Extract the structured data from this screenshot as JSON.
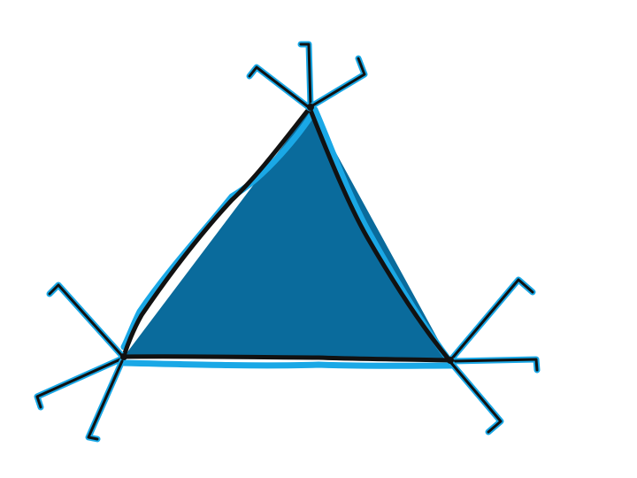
{
  "diagram": {
    "shape": "triangle",
    "vertices": [
      "top",
      "bottom-left",
      "bottom-right"
    ],
    "colors": {
      "background": "#ffffff",
      "fill": "#0a6b9c",
      "outline": "#111111",
      "highlight": "#1aa8e6"
    }
  }
}
